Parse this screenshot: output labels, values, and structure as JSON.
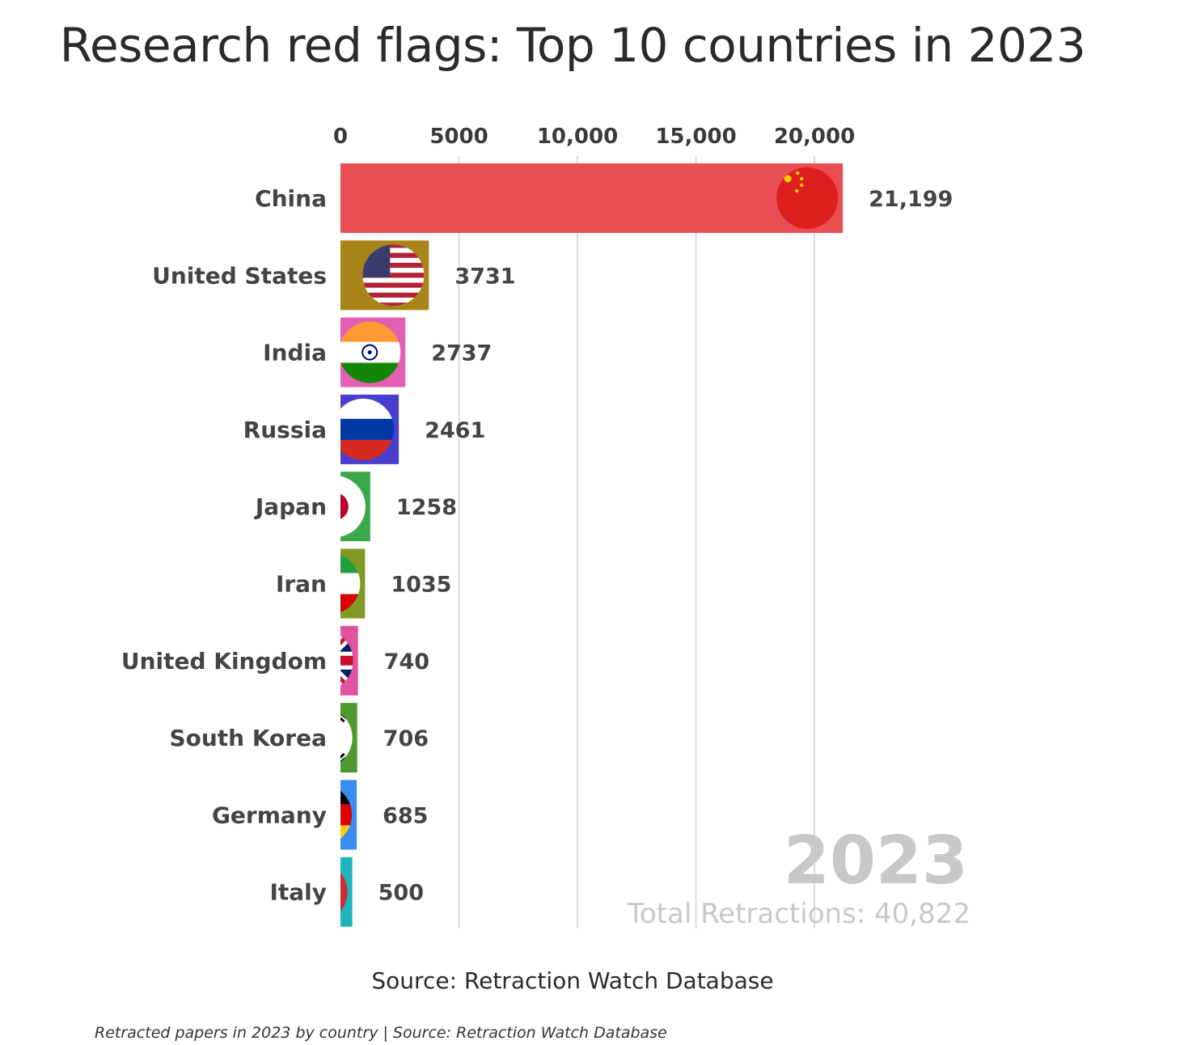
{
  "page": {
    "caption": "Retracted papers in 2023 by country | Source: Retraction Watch Database"
  },
  "chart_data": {
    "type": "bar",
    "orientation": "horizontal",
    "title": "Research red flags: Top 10 countries in 2023",
    "source": "Source: Retraction Watch Database",
    "xlabel": "",
    "ylabel": "",
    "xlim": [
      0,
      21199
    ],
    "x_ticks": [
      0,
      5000,
      10000,
      15000,
      20000
    ],
    "x_tick_labels": [
      "0",
      "5000",
      "10,000",
      "15,000",
      "20,000"
    ],
    "grid": true,
    "year_label": "2023",
    "total_label": "Total Retractions: 40,822",
    "categories": [
      "China",
      "United States",
      "India",
      "Russia",
      "Japan",
      "Iran",
      "United Kingdom",
      "South Korea",
      "Germany",
      "Italy"
    ],
    "values": [
      21199,
      3731,
      2737,
      2461,
      1258,
      1035,
      740,
      706,
      685,
      500
    ],
    "value_labels": [
      "21,199",
      "3731",
      "2737",
      "2461",
      "1258",
      "1035",
      "740",
      "706",
      "685",
      "500"
    ],
    "bar_colors": [
      "#e94e55",
      "#a88418",
      "#e45fb4",
      "#4a3ed0",
      "#3aa84a",
      "#7f9a22",
      "#e0549f",
      "#4e9a2c",
      "#3a8cf0",
      "#1fb5bf"
    ],
    "flag_icons": [
      "china-flag-icon",
      "usa-flag-icon",
      "india-flag-icon",
      "russia-flag-icon",
      "japan-flag-icon",
      "iran-flag-icon",
      "uk-flag-icon",
      "south-korea-flag-icon",
      "germany-flag-icon",
      "italy-flag-icon"
    ]
  }
}
